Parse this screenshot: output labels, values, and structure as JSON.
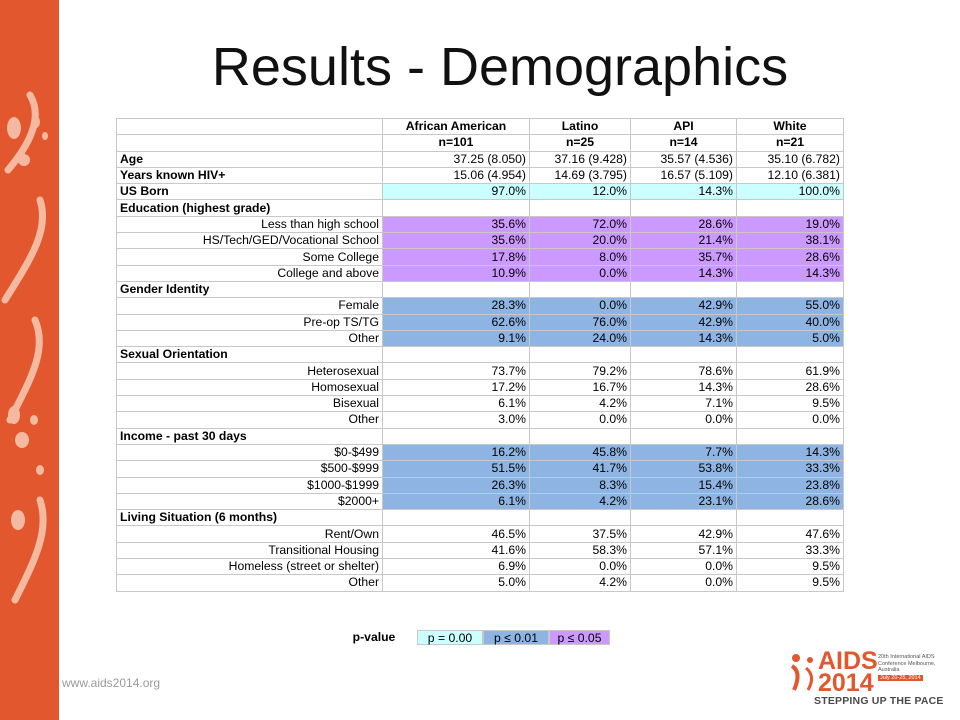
{
  "slide": {
    "title": "Results - Demographics",
    "website": "www.aids2014.org"
  },
  "colors": {
    "sidebar": "#e2572e",
    "cyan": "#ccffff",
    "purple": "#cc99ff",
    "blue": "#8db4e2"
  },
  "table": {
    "columns": [
      "African American",
      "Latino",
      "API",
      "White"
    ],
    "counts": [
      "n=101",
      "n=25",
      "n=14",
      "n=21"
    ],
    "rows": [
      {
        "label": "Age",
        "heading": true,
        "highlight": "none",
        "values": [
          "37.25 (8.050)",
          "37.16 (9.428)",
          "35.57 (4.536)",
          "35.10 (6.782)"
        ]
      },
      {
        "label": "Years known HIV+",
        "heading": true,
        "highlight": "none",
        "values": [
          "15.06 (4.954)",
          "14.69 (3.795)",
          "16.57 (5.109)",
          "12.10 (6.381)"
        ]
      },
      {
        "label": "US Born",
        "heading": true,
        "highlight": "cyan",
        "values": [
          "97.0%",
          "12.0%",
          "14.3%",
          "100.0%"
        ]
      },
      {
        "label": "Education (highest grade)",
        "heading": true,
        "highlight": "none",
        "values": [
          "",
          "",
          "",
          ""
        ]
      },
      {
        "label": "Less than high school",
        "heading": false,
        "highlight": "purple",
        "values": [
          "35.6%",
          "72.0%",
          "28.6%",
          "19.0%"
        ]
      },
      {
        "label": "HS/Tech/GED/Vocational School",
        "heading": false,
        "highlight": "purple",
        "values": [
          "35.6%",
          "20.0%",
          "21.4%",
          "38.1%"
        ]
      },
      {
        "label": "Some College",
        "heading": false,
        "highlight": "purple",
        "values": [
          "17.8%",
          "8.0%",
          "35.7%",
          "28.6%"
        ]
      },
      {
        "label": "College and above",
        "heading": false,
        "highlight": "purple",
        "values": [
          "10.9%",
          "0.0%",
          "14.3%",
          "14.3%"
        ]
      },
      {
        "label": "Gender Identity",
        "heading": true,
        "highlight": "none",
        "values": [
          "",
          "",
          "",
          ""
        ]
      },
      {
        "label": "Female",
        "heading": false,
        "highlight": "blue",
        "values": [
          "28.3%",
          "0.0%",
          "42.9%",
          "55.0%"
        ]
      },
      {
        "label": "Pre-op TS/TG",
        "heading": false,
        "highlight": "blue",
        "values": [
          "62.6%",
          "76.0%",
          "42.9%",
          "40.0%"
        ]
      },
      {
        "label": "Other",
        "heading": false,
        "highlight": "blue",
        "values": [
          "9.1%",
          "24.0%",
          "14.3%",
          "5.0%"
        ]
      },
      {
        "label": "Sexual Orientation",
        "heading": true,
        "highlight": "none",
        "values": [
          "",
          "",
          "",
          ""
        ]
      },
      {
        "label": "Heterosexual",
        "heading": false,
        "highlight": "none",
        "values": [
          "73.7%",
          "79.2%",
          "78.6%",
          "61.9%"
        ]
      },
      {
        "label": "Homosexual",
        "heading": false,
        "highlight": "none",
        "values": [
          "17.2%",
          "16.7%",
          "14.3%",
          "28.6%"
        ]
      },
      {
        "label": "Bisexual",
        "heading": false,
        "highlight": "none",
        "values": [
          "6.1%",
          "4.2%",
          "7.1%",
          "9.5%"
        ]
      },
      {
        "label": "Other",
        "heading": false,
        "highlight": "none",
        "values": [
          "3.0%",
          "0.0%",
          "0.0%",
          "0.0%"
        ]
      },
      {
        "label": "Income - past 30 days",
        "heading": true,
        "highlight": "none",
        "values": [
          "",
          "",
          "",
          ""
        ]
      },
      {
        "label": "$0-$499",
        "heading": false,
        "highlight": "blue",
        "values": [
          "16.2%",
          "45.8%",
          "7.7%",
          "14.3%"
        ]
      },
      {
        "label": "$500-$999",
        "heading": false,
        "highlight": "blue",
        "values": [
          "51.5%",
          "41.7%",
          "53.8%",
          "33.3%"
        ]
      },
      {
        "label": "$1000-$1999",
        "heading": false,
        "highlight": "blue",
        "values": [
          "26.3%",
          "8.3%",
          "15.4%",
          "23.8%"
        ]
      },
      {
        "label": "$2000+",
        "heading": false,
        "highlight": "blue",
        "values": [
          "6.1%",
          "4.2%",
          "23.1%",
          "28.6%"
        ]
      },
      {
        "label": "Living Situation (6 months)",
        "heading": true,
        "highlight": "none",
        "values": [
          "",
          "",
          "",
          ""
        ]
      },
      {
        "label": "Rent/Own",
        "heading": false,
        "highlight": "none",
        "values": [
          "46.5%",
          "37.5%",
          "42.9%",
          "47.6%"
        ]
      },
      {
        "label": "Transitional Housing",
        "heading": false,
        "highlight": "none",
        "values": [
          "41.6%",
          "58.3%",
          "57.1%",
          "33.3%"
        ]
      },
      {
        "label": "Homeless (street or shelter)",
        "heading": false,
        "highlight": "none",
        "values": [
          "6.9%",
          "0.0%",
          "0.0%",
          "9.5%"
        ]
      },
      {
        "label": "Other",
        "heading": false,
        "highlight": "none",
        "values": [
          "5.0%",
          "4.2%",
          "0.0%",
          "9.5%"
        ]
      }
    ]
  },
  "legend": {
    "label": "p-value",
    "items": [
      "p = 0.00",
      "p ≤ 0.01",
      "p ≤ 0.05"
    ]
  },
  "logo": {
    "name": "AIDS",
    "year": "2014",
    "subtitle": "20th International AIDS Conference Melbourne, Australia",
    "dates": "July 20-25, 2014",
    "tagline": "STEPPING UP THE PACE"
  }
}
